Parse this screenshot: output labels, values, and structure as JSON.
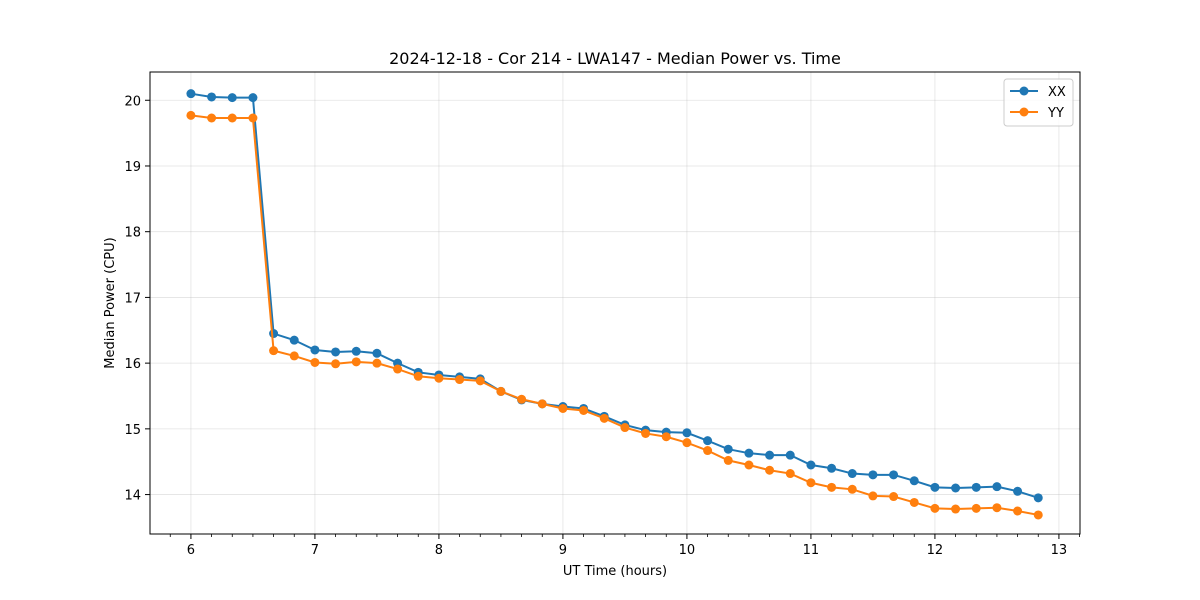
{
  "chart_data": {
    "type": "line",
    "title": "2024-12-18 - Cor 214 - LWA147 - Median Power vs. Time",
    "xlabel": "UT Time (hours)",
    "ylabel": "Median Power (CPU)",
    "xlim": [
      5.67,
      13.17
    ],
    "ylim": [
      13.4,
      20.43
    ],
    "xticks": [
      6,
      7,
      8,
      9,
      10,
      11,
      12,
      13
    ],
    "yticks": [
      14,
      15,
      16,
      17,
      18,
      19,
      20
    ],
    "grid": true,
    "legend_position": "top-right",
    "x": [
      6.0,
      6.1667,
      6.3333,
      6.5,
      6.6667,
      6.8333,
      7.0,
      7.1667,
      7.3333,
      7.5,
      7.6667,
      7.8333,
      8.0,
      8.1667,
      8.3333,
      8.5,
      8.6667,
      8.8333,
      9.0,
      9.1667,
      9.3333,
      9.5,
      9.6667,
      9.8333,
      10.0,
      10.1667,
      10.3333,
      10.5,
      10.6667,
      10.8333,
      11.0,
      11.1667,
      11.3333,
      11.5,
      11.6667,
      11.8333,
      12.0,
      12.1667,
      12.3333,
      12.5,
      12.6667,
      12.8333
    ],
    "series": [
      {
        "name": "XX",
        "color": "#1f77b4",
        "values": [
          20.1,
          20.05,
          20.04,
          20.04,
          16.45,
          16.35,
          16.2,
          16.17,
          16.18,
          16.15,
          16.0,
          15.86,
          15.82,
          15.79,
          15.76,
          15.57,
          15.44,
          15.38,
          15.34,
          15.31,
          15.19,
          15.06,
          14.98,
          14.95,
          14.94,
          14.82,
          14.69,
          14.63,
          14.6,
          14.6,
          14.45,
          14.4,
          14.32,
          14.3,
          14.3,
          14.21,
          14.11,
          14.1,
          14.11,
          14.12,
          14.05,
          13.95
        ]
      },
      {
        "name": "YY",
        "color": "#ff7f0e",
        "values": [
          19.77,
          19.73,
          19.73,
          19.73,
          16.19,
          16.11,
          16.01,
          15.99,
          16.02,
          16.0,
          15.91,
          15.8,
          15.77,
          15.75,
          15.73,
          15.57,
          15.45,
          15.38,
          15.31,
          15.28,
          15.16,
          15.02,
          14.93,
          14.88,
          14.79,
          14.67,
          14.52,
          14.45,
          14.37,
          14.32,
          14.18,
          14.11,
          14.08,
          13.98,
          13.97,
          13.88,
          13.79,
          13.78,
          13.79,
          13.8,
          13.75,
          13.69
        ]
      }
    ]
  }
}
